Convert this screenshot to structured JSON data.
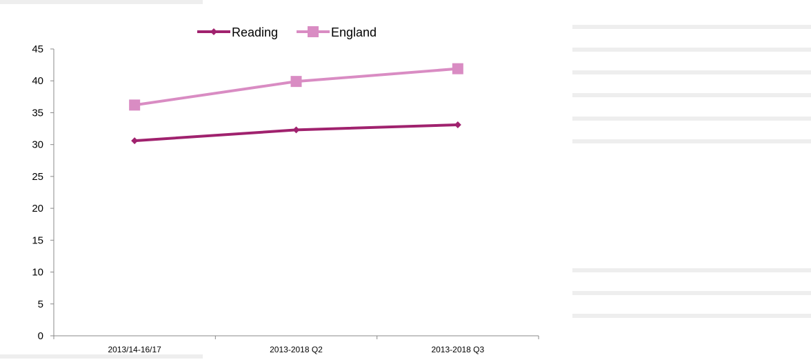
{
  "chart_data": {
    "type": "line",
    "categories": [
      "2013/14-16/17",
      "2013-2018 Q2",
      "2013-2018 Q3"
    ],
    "ylim": [
      0,
      45
    ],
    "yticks": [
      0,
      5,
      10,
      15,
      20,
      25,
      30,
      35,
      40,
      45
    ],
    "grid": false,
    "legend_position": "top",
    "series": [
      {
        "name": "Reading",
        "values": [
          30.6,
          32.3,
          33.1
        ],
        "color": "#a0226e",
        "marker": "diamond"
      },
      {
        "name": "England",
        "values": [
          36.2,
          39.9,
          41.9
        ],
        "color": "#d98cc3",
        "marker": "square"
      }
    ]
  }
}
